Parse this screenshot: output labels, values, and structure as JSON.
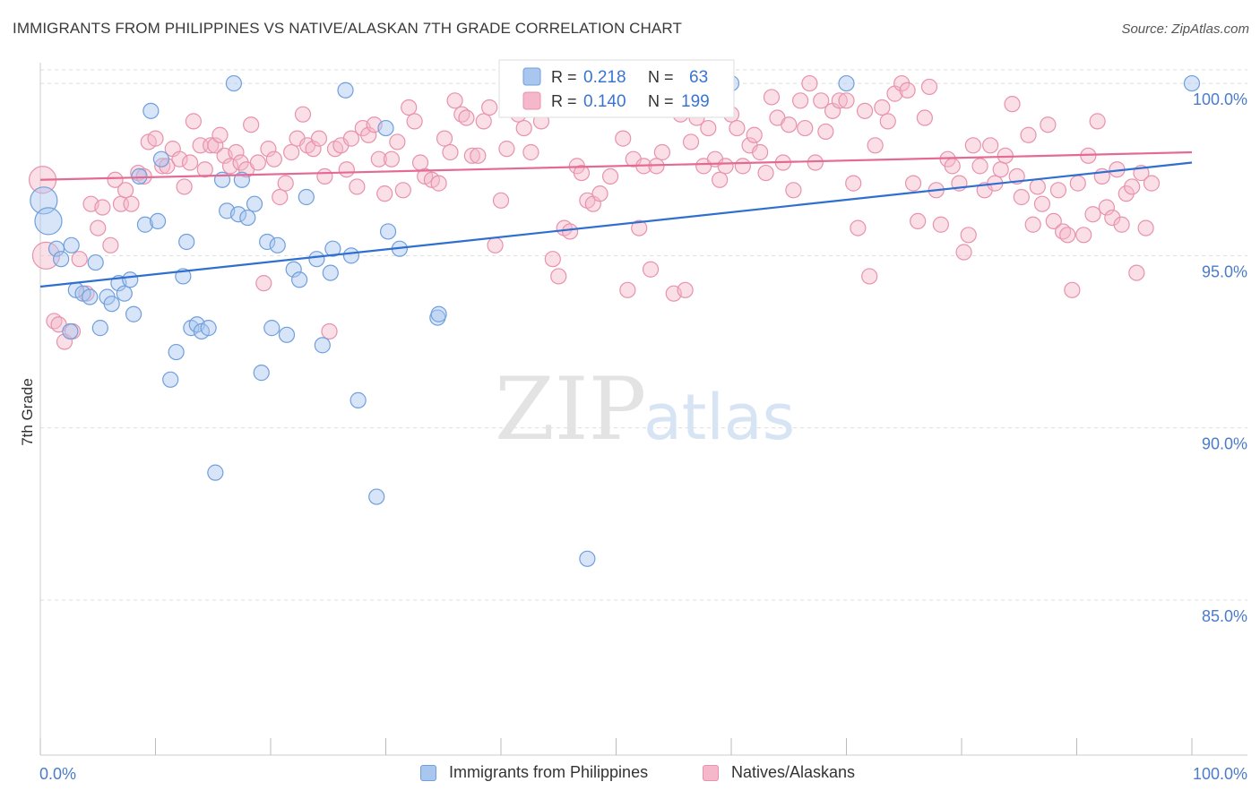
{
  "header": {
    "title": "IMMIGRANTS FROM PHILIPPINES VS NATIVE/ALASKAN 7TH GRADE CORRELATION CHART",
    "source": "Source: ZipAtlas.com"
  },
  "watermark": {
    "zip": "ZIP",
    "atlas": "atlas"
  },
  "stats": {
    "blue": {
      "r_label": "R =",
      "r_value": "0.218",
      "n_label": "N =",
      "n_value": "63"
    },
    "pink": {
      "r_label": "R =",
      "r_value": "0.140",
      "n_label": "N =",
      "n_value": "199"
    }
  },
  "legend": {
    "blue_label": "Immigrants from Philippines",
    "pink_label": "Natives/Alaskans"
  },
  "colors": {
    "blue_fill": "#a9c6ef",
    "blue_stroke": "#6f9fdc",
    "blue_line": "#2f6fcf",
    "pink_fill": "#f5b7ca",
    "pink_stroke": "#e892ad",
    "pink_line": "#e46a95",
    "tick_label": "#4a7cc9",
    "grid": "#dddddd"
  },
  "chart_data": {
    "type": "scatter",
    "title": "IMMIGRANTS FROM PHILIPPINES VS NATIVE/ALASKAN 7TH GRADE CORRELATION CHART",
    "xlabel": "",
    "ylabel": "7th Grade",
    "xlim": [
      0,
      100
    ],
    "ylim": [
      80.5,
      100.6
    ],
    "x_tick_labels": [
      "0.0%",
      "100.0%"
    ],
    "y_ticks": [
      85,
      90,
      95,
      100
    ],
    "y_tick_labels": [
      "85.0%",
      "90.0%",
      "95.0%",
      "100.0%"
    ],
    "grid": true,
    "legend_position": "bottom",
    "series": [
      {
        "name": "Immigrants from Philippines",
        "color": "#6f9fdc",
        "trend": {
          "x": [
            0,
            100
          ],
          "y": [
            94.1,
            97.7
          ]
        },
        "points": [
          [
            0.3,
            96.6
          ],
          [
            0.7,
            96.0
          ],
          [
            1.4,
            95.2
          ],
          [
            1.8,
            94.9
          ],
          [
            2.6,
            92.8
          ],
          [
            2.7,
            95.3
          ],
          [
            3.1,
            94.0
          ],
          [
            3.7,
            93.9
          ],
          [
            4.3,
            93.8
          ],
          [
            4.8,
            94.8
          ],
          [
            5.2,
            92.9
          ],
          [
            5.8,
            93.8
          ],
          [
            6.2,
            93.6
          ],
          [
            6.8,
            94.2
          ],
          [
            7.3,
            93.9
          ],
          [
            7.8,
            94.3
          ],
          [
            8.1,
            93.3
          ],
          [
            8.6,
            97.3
          ],
          [
            9.1,
            95.9
          ],
          [
            9.6,
            99.2
          ],
          [
            10.2,
            96.0
          ],
          [
            10.5,
            97.8
          ],
          [
            11.3,
            91.4
          ],
          [
            11.8,
            92.2
          ],
          [
            12.4,
            94.4
          ],
          [
            12.7,
            95.4
          ],
          [
            13.1,
            92.9
          ],
          [
            13.6,
            93.0
          ],
          [
            14.0,
            92.8
          ],
          [
            14.6,
            92.9
          ],
          [
            15.2,
            88.7
          ],
          [
            15.8,
            97.2
          ],
          [
            16.2,
            96.3
          ],
          [
            16.8,
            100.0
          ],
          [
            17.2,
            96.2
          ],
          [
            17.5,
            97.2
          ],
          [
            18.0,
            96.1
          ],
          [
            18.6,
            96.5
          ],
          [
            19.2,
            91.6
          ],
          [
            19.7,
            95.4
          ],
          [
            20.1,
            92.9
          ],
          [
            20.6,
            95.3
          ],
          [
            21.4,
            92.7
          ],
          [
            22.0,
            94.6
          ],
          [
            22.5,
            94.3
          ],
          [
            23.1,
            96.7
          ],
          [
            24.0,
            94.9
          ],
          [
            24.5,
            92.4
          ],
          [
            25.2,
            94.5
          ],
          [
            25.4,
            95.2
          ],
          [
            26.5,
            99.8
          ],
          [
            27.0,
            95.0
          ],
          [
            27.6,
            90.8
          ],
          [
            29.2,
            88.0
          ],
          [
            30.0,
            98.7
          ],
          [
            30.2,
            95.7
          ],
          [
            31.2,
            95.2
          ],
          [
            34.5,
            93.2
          ],
          [
            34.6,
            93.3
          ],
          [
            47.5,
            86.2
          ],
          [
            60.0,
            100.0
          ],
          [
            70.0,
            100.0
          ],
          [
            100.0,
            100.0
          ]
        ]
      },
      {
        "name": "Natives/Alaskans",
        "color": "#e892ad",
        "trend": {
          "x": [
            0,
            100
          ],
          "y": [
            97.2,
            98.0
          ]
        },
        "points": [
          [
            0.2,
            97.2
          ],
          [
            0.5,
            95.0
          ],
          [
            1.2,
            93.1
          ],
          [
            1.6,
            93.0
          ],
          [
            2.1,
            92.5
          ],
          [
            2.8,
            92.8
          ],
          [
            3.4,
            94.9
          ],
          [
            4.0,
            93.9
          ],
          [
            4.4,
            96.5
          ],
          [
            5.0,
            95.8
          ],
          [
            5.4,
            96.4
          ],
          [
            6.1,
            95.3
          ],
          [
            6.5,
            97.2
          ],
          [
            7.0,
            96.5
          ],
          [
            7.4,
            96.9
          ],
          [
            7.9,
            96.5
          ],
          [
            8.5,
            97.4
          ],
          [
            9.0,
            97.3
          ],
          [
            9.4,
            98.3
          ],
          [
            10.0,
            98.4
          ],
          [
            10.6,
            97.6
          ],
          [
            11.0,
            97.6
          ],
          [
            11.5,
            98.1
          ],
          [
            12.1,
            97.8
          ],
          [
            12.5,
            97.0
          ],
          [
            13.0,
            97.7
          ],
          [
            13.3,
            98.9
          ],
          [
            13.9,
            98.2
          ],
          [
            14.3,
            97.5
          ],
          [
            14.8,
            98.2
          ],
          [
            15.2,
            98.2
          ],
          [
            15.6,
            98.5
          ],
          [
            16.0,
            97.9
          ],
          [
            16.5,
            97.6
          ],
          [
            17.0,
            98.0
          ],
          [
            17.4,
            97.7
          ],
          [
            17.9,
            97.5
          ],
          [
            18.3,
            98.8
          ],
          [
            18.9,
            97.7
          ],
          [
            19.4,
            94.2
          ],
          [
            19.8,
            98.1
          ],
          [
            20.3,
            97.8
          ],
          [
            20.8,
            96.7
          ],
          [
            21.3,
            97.1
          ],
          [
            21.8,
            98.0
          ],
          [
            22.3,
            98.4
          ],
          [
            22.8,
            99.1
          ],
          [
            23.2,
            98.2
          ],
          [
            23.7,
            98.1
          ],
          [
            24.2,
            98.4
          ],
          [
            24.7,
            97.3
          ],
          [
            25.1,
            92.8
          ],
          [
            25.6,
            98.1
          ],
          [
            26.1,
            98.2
          ],
          [
            26.6,
            97.5
          ],
          [
            27.0,
            98.4
          ],
          [
            27.5,
            97.0
          ],
          [
            28.0,
            98.7
          ],
          [
            28.5,
            98.5
          ],
          [
            29.0,
            98.8
          ],
          [
            29.4,
            97.8
          ],
          [
            29.9,
            96.8
          ],
          [
            30.5,
            97.8
          ],
          [
            31.0,
            98.3
          ],
          [
            31.5,
            96.9
          ],
          [
            32.0,
            99.3
          ],
          [
            32.5,
            98.9
          ],
          [
            33.0,
            97.7
          ],
          [
            33.4,
            97.3
          ],
          [
            34.0,
            97.2
          ],
          [
            34.6,
            97.1
          ],
          [
            35.1,
            98.4
          ],
          [
            35.6,
            98.0
          ],
          [
            36.0,
            99.5
          ],
          [
            36.6,
            99.1
          ],
          [
            37.0,
            99.0
          ],
          [
            37.5,
            97.9
          ],
          [
            38.0,
            97.9
          ],
          [
            38.5,
            98.9
          ],
          [
            39.0,
            99.3
          ],
          [
            39.5,
            95.3
          ],
          [
            40.0,
            96.6
          ],
          [
            40.5,
            98.1
          ],
          [
            41.0,
            99.8
          ],
          [
            41.5,
            99.1
          ],
          [
            42.0,
            98.7
          ],
          [
            42.6,
            98.0
          ],
          [
            43.1,
            99.3
          ],
          [
            43.5,
            98.9
          ],
          [
            44.0,
            100.0
          ],
          [
            44.5,
            94.9
          ],
          [
            45.0,
            94.4
          ],
          [
            45.5,
            95.8
          ],
          [
            46.0,
            95.7
          ],
          [
            46.6,
            97.6
          ],
          [
            47.0,
            97.4
          ],
          [
            47.5,
            96.6
          ],
          [
            48.0,
            96.5
          ],
          [
            48.6,
            96.8
          ],
          [
            49.0,
            99.6
          ],
          [
            49.5,
            97.3
          ],
          [
            50.0,
            99.5
          ],
          [
            50.6,
            98.4
          ],
          [
            51.0,
            94.0
          ],
          [
            51.5,
            97.8
          ],
          [
            52.0,
            95.8
          ],
          [
            52.4,
            97.6
          ],
          [
            53.0,
            94.6
          ],
          [
            53.5,
            97.6
          ],
          [
            54.0,
            98.0
          ],
          [
            54.5,
            99.5
          ],
          [
            55.0,
            93.9
          ],
          [
            55.6,
            99.1
          ],
          [
            56.0,
            94.0
          ],
          [
            56.5,
            98.3
          ],
          [
            57.0,
            99.0
          ],
          [
            57.6,
            97.6
          ],
          [
            58.0,
            98.7
          ],
          [
            58.6,
            97.8
          ],
          [
            59.0,
            97.2
          ],
          [
            59.5,
            97.6
          ],
          [
            60.0,
            99.1
          ],
          [
            60.5,
            98.7
          ],
          [
            61.0,
            97.6
          ],
          [
            61.6,
            98.2
          ],
          [
            62.0,
            98.5
          ],
          [
            62.5,
            98.0
          ],
          [
            63.0,
            97.4
          ],
          [
            63.5,
            99.6
          ],
          [
            64.0,
            99.0
          ],
          [
            64.5,
            97.7
          ],
          [
            65.0,
            98.8
          ],
          [
            65.4,
            96.9
          ],
          [
            66.0,
            99.5
          ],
          [
            66.4,
            98.7
          ],
          [
            66.8,
            100.0
          ],
          [
            67.3,
            97.7
          ],
          [
            67.8,
            99.5
          ],
          [
            68.2,
            98.6
          ],
          [
            68.8,
            99.2
          ],
          [
            69.4,
            99.5
          ],
          [
            70.0,
            99.5
          ],
          [
            70.6,
            97.1
          ],
          [
            71.0,
            95.8
          ],
          [
            71.6,
            99.2
          ],
          [
            72.0,
            94.4
          ],
          [
            72.5,
            98.2
          ],
          [
            73.1,
            99.3
          ],
          [
            73.6,
            98.9
          ],
          [
            74.2,
            99.7
          ],
          [
            74.8,
            100.0
          ],
          [
            75.3,
            99.8
          ],
          [
            75.8,
            97.1
          ],
          [
            76.2,
            96.0
          ],
          [
            76.8,
            99.0
          ],
          [
            77.2,
            99.9
          ],
          [
            77.8,
            96.9
          ],
          [
            78.2,
            95.9
          ],
          [
            78.8,
            97.8
          ],
          [
            79.2,
            97.6
          ],
          [
            79.8,
            97.1
          ],
          [
            80.2,
            95.1
          ],
          [
            80.6,
            95.6
          ],
          [
            81.0,
            98.2
          ],
          [
            81.6,
            97.6
          ],
          [
            82.0,
            96.9
          ],
          [
            82.5,
            98.2
          ],
          [
            82.9,
            97.1
          ],
          [
            83.4,
            97.5
          ],
          [
            83.8,
            97.9
          ],
          [
            84.4,
            99.4
          ],
          [
            84.8,
            97.3
          ],
          [
            85.2,
            96.7
          ],
          [
            85.8,
            98.5
          ],
          [
            86.2,
            95.9
          ],
          [
            86.6,
            97.0
          ],
          [
            87.0,
            96.5
          ],
          [
            87.5,
            98.8
          ],
          [
            88.0,
            96.0
          ],
          [
            88.4,
            96.9
          ],
          [
            88.8,
            95.7
          ],
          [
            89.2,
            95.6
          ],
          [
            89.6,
            94.0
          ],
          [
            90.1,
            97.1
          ],
          [
            90.6,
            95.6
          ],
          [
            91.0,
            97.9
          ],
          [
            91.4,
            96.2
          ],
          [
            91.8,
            98.9
          ],
          [
            92.2,
            97.3
          ],
          [
            92.6,
            96.4
          ],
          [
            93.1,
            96.1
          ],
          [
            93.5,
            97.5
          ],
          [
            93.9,
            95.9
          ],
          [
            94.3,
            96.8
          ],
          [
            94.8,
            97.0
          ],
          [
            95.2,
            94.5
          ],
          [
            95.6,
            97.4
          ],
          [
            96.0,
            95.8
          ],
          [
            96.5,
            97.1
          ]
        ]
      }
    ]
  }
}
